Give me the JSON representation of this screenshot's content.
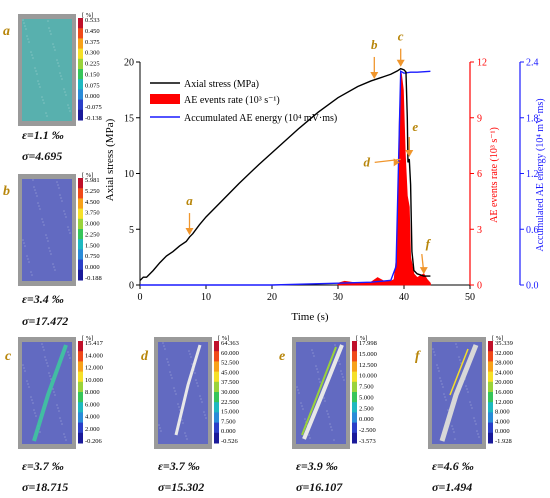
{
  "panels": [
    {
      "id": "a",
      "eps": "ε=1.1 ‰",
      "sig": "σ=4.695",
      "unit": "[ %]",
      "ticks": [
        "0.533",
        "0.450",
        "0.375",
        "0.300",
        "0.225",
        "0.150",
        "0.075",
        "0.000",
        "-0.075",
        "-0.138"
      ],
      "fill": "#4fb3b0"
    },
    {
      "id": "b",
      "eps": "ε=3.4 ‰",
      "sig": "σ=17.472",
      "unit": "[ %]",
      "ticks": [
        "5.981",
        "5.250",
        "4.500",
        "3.750",
        "3.000",
        "2.250",
        "1.500",
        "0.750",
        "0.000",
        "-0.188"
      ],
      "fill": "#5a63c6"
    },
    {
      "id": "c",
      "eps": "ε=3.7 ‰",
      "sig": "σ=18.715",
      "unit": "[ %]",
      "ticks": [
        "15.417",
        "14.000",
        "12.000",
        "10.000",
        "8.000",
        "6.000",
        "4.000",
        "2.000",
        "-0.206"
      ],
      "fill": "#5a63c6"
    },
    {
      "id": "d",
      "eps": "ε=3.7 ‰",
      "sig": "σ=15.302",
      "unit": "[ %]",
      "ticks": [
        "64.363",
        "60.000",
        "52.500",
        "45.000",
        "37.500",
        "30.000",
        "22.500",
        "15.000",
        "7.500",
        "0.000",
        "-0.526"
      ],
      "fill": "#5a63c6"
    },
    {
      "id": "e",
      "eps": "ε=3.9 ‰",
      "sig": "σ=16.107",
      "unit": "[ %]",
      "ticks": [
        "17.998",
        "15.000",
        "12.500",
        "10.000",
        "7.500",
        "5.000",
        "2.500",
        "0.000",
        "-2.500",
        "-3.573"
      ],
      "fill": "#5a63c6"
    },
    {
      "id": "f",
      "eps": "ε=4.6 ‰",
      "sig": "σ=1.494",
      "unit": "[ %]",
      "ticks": [
        "35.339",
        "32.000",
        "28.000",
        "24.000",
        "20.000",
        "16.000",
        "12.000",
        "8.000",
        "4.000",
        "0.000",
        "-1.928"
      ],
      "fill": "#5a63c6"
    }
  ],
  "chart_data": {
    "type": "line",
    "xlabel": "Time (s)",
    "ylabel": "Axial stress (MPa)",
    "ylabel_right1": "AE events rate (10³ s⁻¹)",
    "ylabel_right2": "Accumulated AE energy (10⁴ mV·ms)",
    "xlim": [
      0,
      50
    ],
    "xticks": [
      0,
      10,
      20,
      30,
      40,
      50
    ],
    "ylim": [
      0,
      20
    ],
    "yticks": [
      0,
      5,
      10,
      15,
      20
    ],
    "ylim_right1": [
      0,
      12
    ],
    "yticks_right1": [
      0,
      3,
      6,
      9,
      12
    ],
    "ylim_right2": [
      0,
      2.4
    ],
    "yticks_right2": [
      "0.0",
      "0.6",
      "1.2",
      "1.8",
      "2.4"
    ],
    "legend": [
      "Axial stress (MPa)",
      "AE events rate (10³ s⁻¹)",
      "Accumulated AE energy (10⁴ mV·ms)"
    ],
    "legend_position": "top-left",
    "colors": {
      "stress": "#000000",
      "ae_rate": "#ff0000",
      "ae_energy": "#1a1aff",
      "arrow": "#f0962d",
      "label": "#b8860b"
    },
    "series": [
      {
        "name": "Axial stress (MPa)",
        "axis": "left",
        "x": [
          0,
          0.5,
          1,
          2,
          3,
          4,
          5,
          6,
          7,
          7.5,
          8,
          9,
          10,
          12,
          15,
          18,
          21,
          24,
          27,
          30,
          33,
          35,
          37,
          38,
          39,
          39.5,
          40,
          40.3,
          40.5,
          40.6,
          40.8,
          41,
          41.2,
          41.5,
          42,
          43,
          44
        ],
        "y": [
          0.4,
          0.7,
          0.7,
          1.3,
          2,
          2.6,
          3,
          3.5,
          3.9,
          4.3,
          4.6,
          5.4,
          6.1,
          7.3,
          9.1,
          10.8,
          12.4,
          14,
          15.5,
          16.8,
          17.8,
          18.3,
          18.7,
          18.9,
          19.2,
          19.4,
          19.3,
          19.1,
          15,
          11,
          11.3,
          9,
          3,
          1.3,
          1.0,
          0.8,
          0.8
        ]
      },
      {
        "name": "AE events rate (10³ s⁻¹)",
        "axis": "right1",
        "x": [
          30,
          31,
          33,
          35,
          36,
          37,
          38,
          38.5,
          39,
          39.3,
          39.6,
          39.9,
          40.2,
          40.5,
          40.8,
          41,
          41.5,
          42,
          42.5,
          43,
          43.5,
          44
        ],
        "y": [
          0.1,
          0.2,
          0.1,
          0.15,
          0.4,
          0.2,
          0.2,
          0.3,
          2,
          9,
          11.4,
          10.5,
          7,
          4.8,
          4.2,
          1.5,
          0.6,
          0.4,
          0.5,
          0.6,
          0.3,
          0.1
        ]
      },
      {
        "name": "Accumulated AE energy (10⁴ mV·ms)",
        "axis": "right2",
        "x": [
          0,
          10,
          20,
          30,
          35,
          38,
          38.8,
          39.2,
          39.5,
          40,
          41,
          42,
          44
        ],
        "y": [
          0,
          0,
          0,
          0.02,
          0.03,
          0.05,
          0.2,
          1.4,
          2.3,
          2.28,
          2.29,
          2.29,
          2.3
        ]
      }
    ],
    "annotations": [
      {
        "label": "a",
        "x": 7.5,
        "y": 4.3
      },
      {
        "label": "b",
        "x": 35.5,
        "y": 18.3
      },
      {
        "label": "c",
        "x": 39.5,
        "y": 19.4
      },
      {
        "label": "d",
        "x": 39.5,
        "y": 11.0
      },
      {
        "label": "e",
        "x": 40.8,
        "y": 11.3
      },
      {
        "label": "f",
        "x": 43.0,
        "y": 0.8
      }
    ]
  }
}
